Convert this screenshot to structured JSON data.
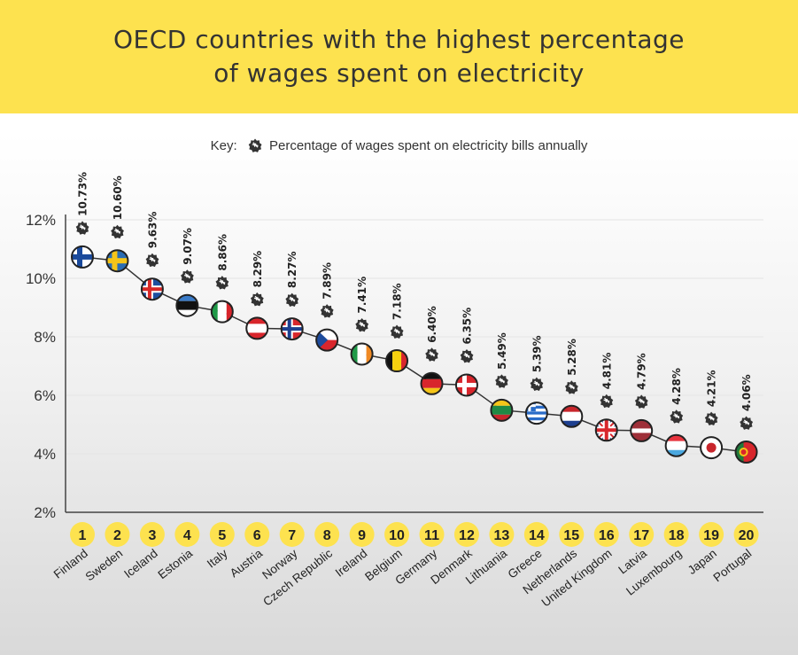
{
  "title_line1": "OECD countries with the highest percentage",
  "title_line2": "of wages spent on electricity",
  "key": {
    "label": "Key:",
    "description": "Percentage of wages spent on electricity bills annually",
    "icon": "electricity-symbol-icon"
  },
  "colors": {
    "header": "#fde24f",
    "rank_circle": "#fde24f",
    "line": "#333333",
    "axis": "#444444",
    "grid": "#e4e4e4"
  },
  "chart_data": {
    "type": "line",
    "title": "OECD countries with the highest percentage of wages spent on electricity",
    "ylim": [
      2,
      12
    ],
    "yticks": [
      2,
      4,
      6,
      8,
      10,
      12
    ],
    "ytick_labels": [
      "2%",
      "4%",
      "6%",
      "8%",
      "10%",
      "12%"
    ],
    "grid": "horizontal",
    "ranks": [
      "1",
      "2",
      "3",
      "4",
      "5",
      "6",
      "7",
      "8",
      "9",
      "10",
      "11",
      "12",
      "13",
      "14",
      "15",
      "16",
      "17",
      "18",
      "19",
      "20"
    ],
    "categories": [
      "Finland",
      "Sweden",
      "Iceland",
      "Estonia",
      "Italy",
      "Austria",
      "Norway",
      "Czech Republic",
      "Ireland",
      "Belgium",
      "Germany",
      "Denmark",
      "Lithuania",
      "Greece",
      "Netherlands",
      "United Kingdom",
      "Latvia",
      "Luxembourg",
      "Japan",
      "Portugal"
    ],
    "values": [
      10.73,
      10.6,
      9.63,
      9.07,
      8.86,
      8.29,
      8.27,
      7.89,
      7.41,
      7.18,
      6.4,
      6.35,
      5.49,
      5.39,
      5.28,
      4.81,
      4.79,
      4.28,
      4.21,
      4.06
    ],
    "value_labels": [
      "10.73%",
      "10.60%",
      "9.63%",
      "9.07%",
      "8.86%",
      "8.29%",
      "8.27%",
      "7.89%",
      "7.41%",
      "7.18%",
      "6.40%",
      "6.35%",
      "5.49%",
      "5.39%",
      "5.28%",
      "4.81%",
      "4.79%",
      "4.28%",
      "4.21%",
      "4.06%"
    ],
    "markers": [
      "flag-finland",
      "flag-sweden",
      "flag-iceland",
      "flag-estonia",
      "flag-italy",
      "flag-austria",
      "flag-norway",
      "flag-czech-republic",
      "flag-ireland",
      "flag-belgium",
      "flag-germany",
      "flag-denmark",
      "flag-lithuania",
      "flag-greece",
      "flag-netherlands",
      "flag-united-kingdom",
      "flag-latvia",
      "flag-luxembourg",
      "flag-japan",
      "flag-portugal"
    ]
  }
}
